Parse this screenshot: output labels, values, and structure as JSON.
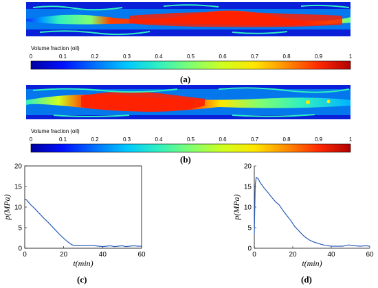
{
  "figure": {
    "colorbar_title": "Volume fraction (oil)",
    "colorbar_ticks": [
      "0",
      "0.1",
      "0.2",
      "0.3",
      "0.4",
      "0.5",
      "0.6",
      "0.7",
      "0.8",
      "0.9",
      "1"
    ],
    "colormap": [
      "#0000a0",
      "#0010ff",
      "#0070ff",
      "#00c8ff",
      "#30f0c0",
      "#80ff70",
      "#d0ff20",
      "#ffe600",
      "#ff8c00",
      "#ff2a00",
      "#b00000"
    ],
    "panel_a": {
      "label": "(a)"
    },
    "panel_b": {
      "label": "(b)"
    },
    "panel_c": {
      "label": "(c)"
    },
    "panel_d": {
      "label": "(d)"
    }
  },
  "chart_data": [
    {
      "type": "line",
      "panel": "c",
      "xlabel": "t(min)",
      "ylabel": "p(MPa)",
      "xlim": [
        0,
        60
      ],
      "ylim": [
        0,
        20
      ],
      "xticks": [
        "0",
        "20",
        "40",
        "60"
      ],
      "yticks": [
        "0",
        "5",
        "10",
        "15",
        "20"
      ],
      "grid": false,
      "box": true,
      "color": "#2a5cb8",
      "x": [
        0,
        0.5,
        1,
        3,
        5,
        8,
        10,
        12,
        14,
        16,
        18,
        20,
        22,
        24,
        25,
        26,
        27,
        28,
        30,
        32,
        34,
        36,
        38,
        40,
        42,
        44,
        46,
        48,
        50,
        52,
        54,
        56,
        58,
        60
      ],
      "y": [
        11.8,
        11.9,
        11.7,
        10.6,
        9.7,
        8.2,
        7.2,
        6.3,
        5.3,
        4.3,
        3.3,
        2.4,
        1.6,
        0.9,
        0.7,
        0.6,
        0.7,
        0.6,
        0.7,
        0.6,
        0.7,
        0.6,
        0.5,
        0.4,
        0.5,
        0.6,
        0.4,
        0.5,
        0.6,
        0.4,
        0.5,
        0.6,
        0.5,
        0.5
      ]
    },
    {
      "type": "line",
      "panel": "d",
      "xlabel": "t(min)",
      "ylabel": "p(MPa)",
      "xlim": [
        0,
        60
      ],
      "ylim": [
        0,
        20
      ],
      "xticks": [
        "0",
        "20",
        "40",
        "60"
      ],
      "yticks": [
        "0",
        "5",
        "10",
        "15",
        "20"
      ],
      "grid": false,
      "box": false,
      "color": "#2a5cb8",
      "x": [
        0,
        0.5,
        1,
        2,
        3,
        5,
        7,
        9,
        11,
        13,
        15,
        17,
        19,
        21,
        23,
        25,
        27,
        29,
        31,
        33,
        35,
        37,
        40,
        43,
        46,
        49,
        52,
        55,
        58,
        60
      ],
      "y": [
        3.5,
        15.5,
        17.2,
        16.9,
        16.0,
        14.7,
        13.6,
        12.4,
        11.3,
        10.5,
        9.1,
        7.9,
        6.7,
        5.3,
        4.3,
        3.3,
        2.5,
        1.9,
        1.5,
        1.2,
        0.9,
        0.7,
        0.5,
        0.5,
        0.5,
        0.8,
        0.6,
        0.5,
        0.6,
        0.5
      ]
    }
  ]
}
